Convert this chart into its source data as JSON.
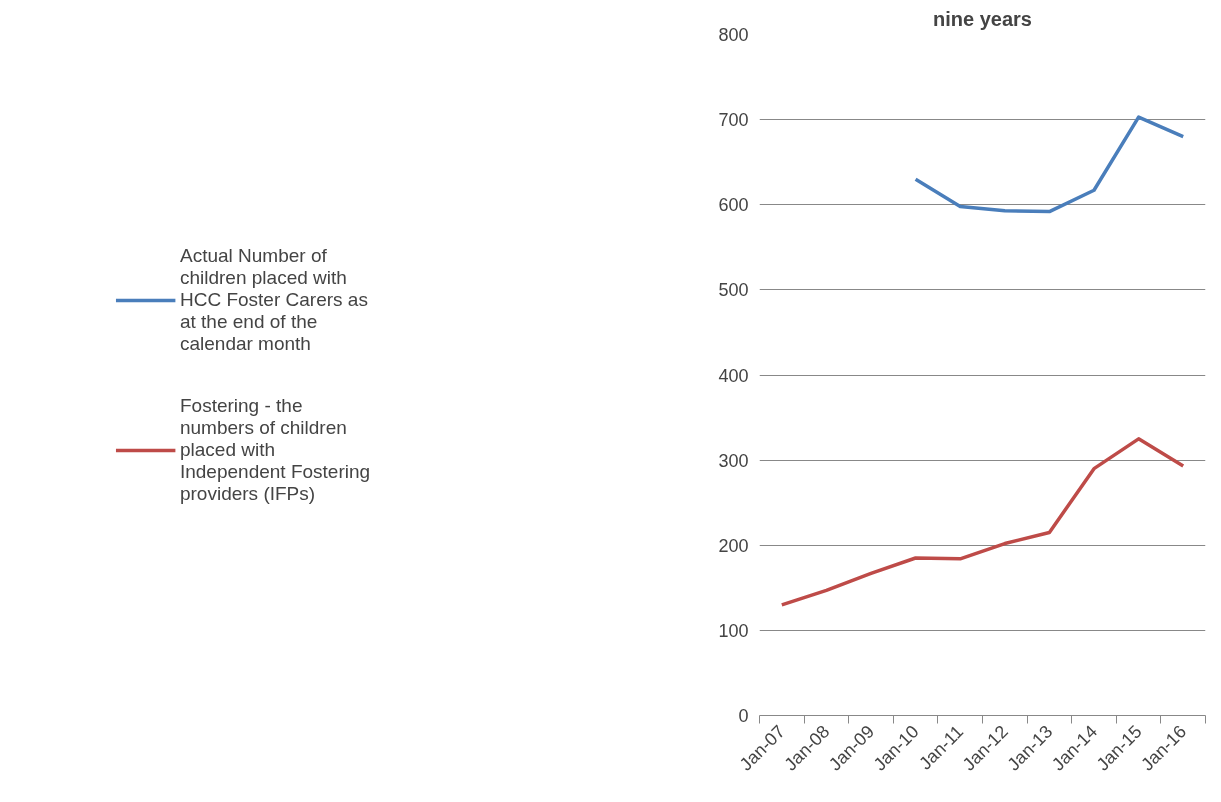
{
  "chart_data": {
    "type": "line",
    "title": "nine years",
    "categories": [
      "Jan-07",
      "Jan-08",
      "Jan-09",
      "Jan-10",
      "Jan-11",
      "Jan-12",
      "Jan-13",
      "Jan-14",
      "Jan-15",
      "Jan-16"
    ],
    "series": [
      {
        "name": "Actual Number of children placed with HCC Foster Carers as at the end of the calendar month",
        "color": "#4a7ebb",
        "values": [
          null,
          null,
          null,
          630,
          598,
          593,
          592,
          617,
          703,
          680
        ]
      },
      {
        "name": "Fostering - the numbers of children placed with Independent Fostering providers (IFPs)",
        "color": "#be4b48",
        "values": [
          130,
          147,
          167,
          185,
          184,
          202,
          215,
          290,
          325,
          293
        ]
      }
    ],
    "ylim": [
      0,
      800
    ],
    "yticks": [
      0,
      100,
      200,
      300,
      400,
      500,
      600,
      700,
      800
    ],
    "grid": "y",
    "legend": "left",
    "marker": "none",
    "line_style": "solid"
  }
}
